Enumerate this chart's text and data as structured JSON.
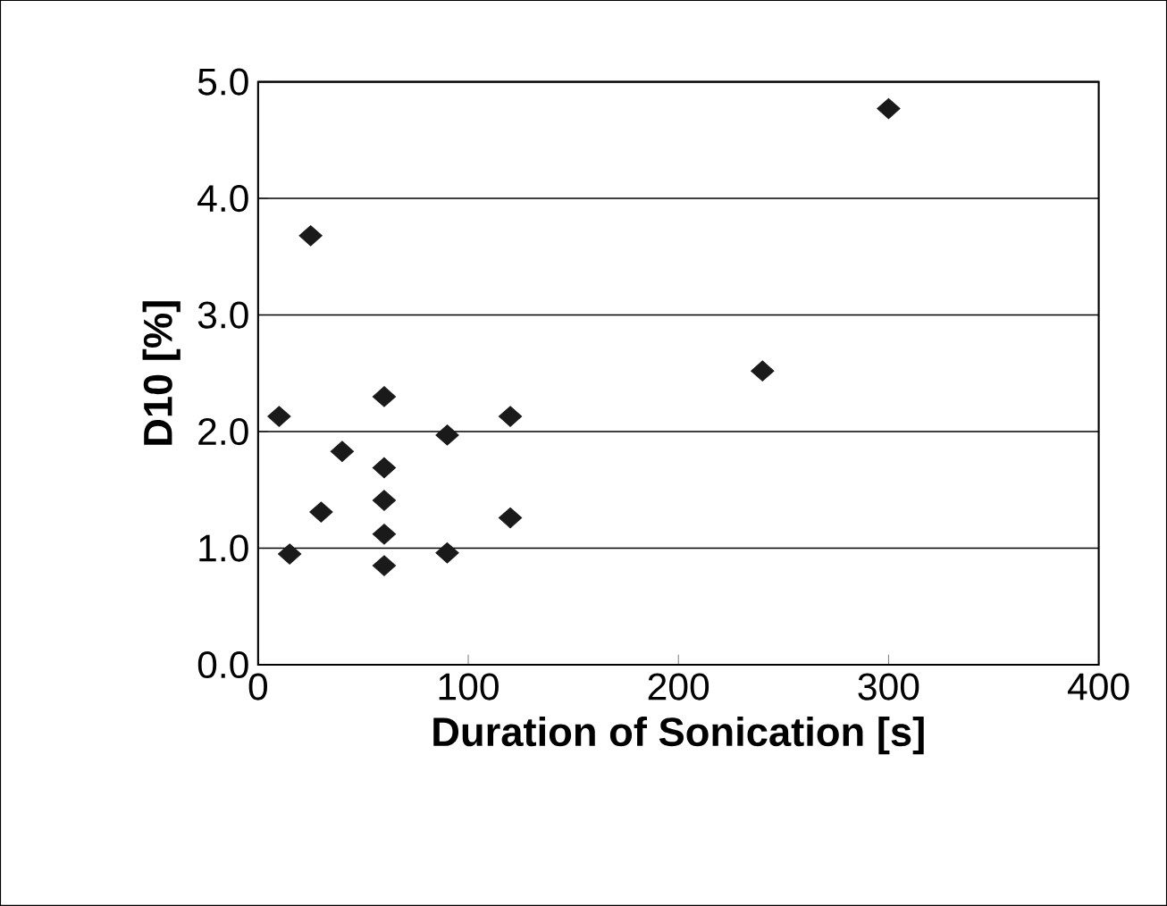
{
  "chart_data": {
    "type": "scatter",
    "xlabel": "Duration of Sonication [s]",
    "ylabel": "D10 [%]",
    "x": [
      10,
      15,
      25,
      30,
      40,
      60,
      60,
      60,
      60,
      60,
      90,
      90,
      120,
      120,
      240,
      300
    ],
    "series": [
      {
        "color": "#1a1a1a",
        "values": [
          2.13,
          0.95,
          3.68,
          1.31,
          1.83,
          2.3,
          1.69,
          1.41,
          1.12,
          0.85,
          1.97,
          0.96,
          2.13,
          1.26,
          2.52,
          4.77
        ]
      }
    ],
    "xlim": [
      0,
      400
    ],
    "xticks": [
      0,
      100,
      200,
      300,
      400
    ],
    "ylim": [
      0,
      5
    ],
    "yticks": [
      {
        "value": 0,
        "label": "0.0"
      },
      {
        "value": 1,
        "label": "1.0"
      },
      {
        "value": 2,
        "label": "2.0"
      },
      {
        "value": 3,
        "label": "3.0"
      },
      {
        "value": 4,
        "label": "4.0"
      },
      {
        "value": 5,
        "label": "5.0"
      }
    ],
    "grid": "y",
    "marker": "diamond"
  }
}
